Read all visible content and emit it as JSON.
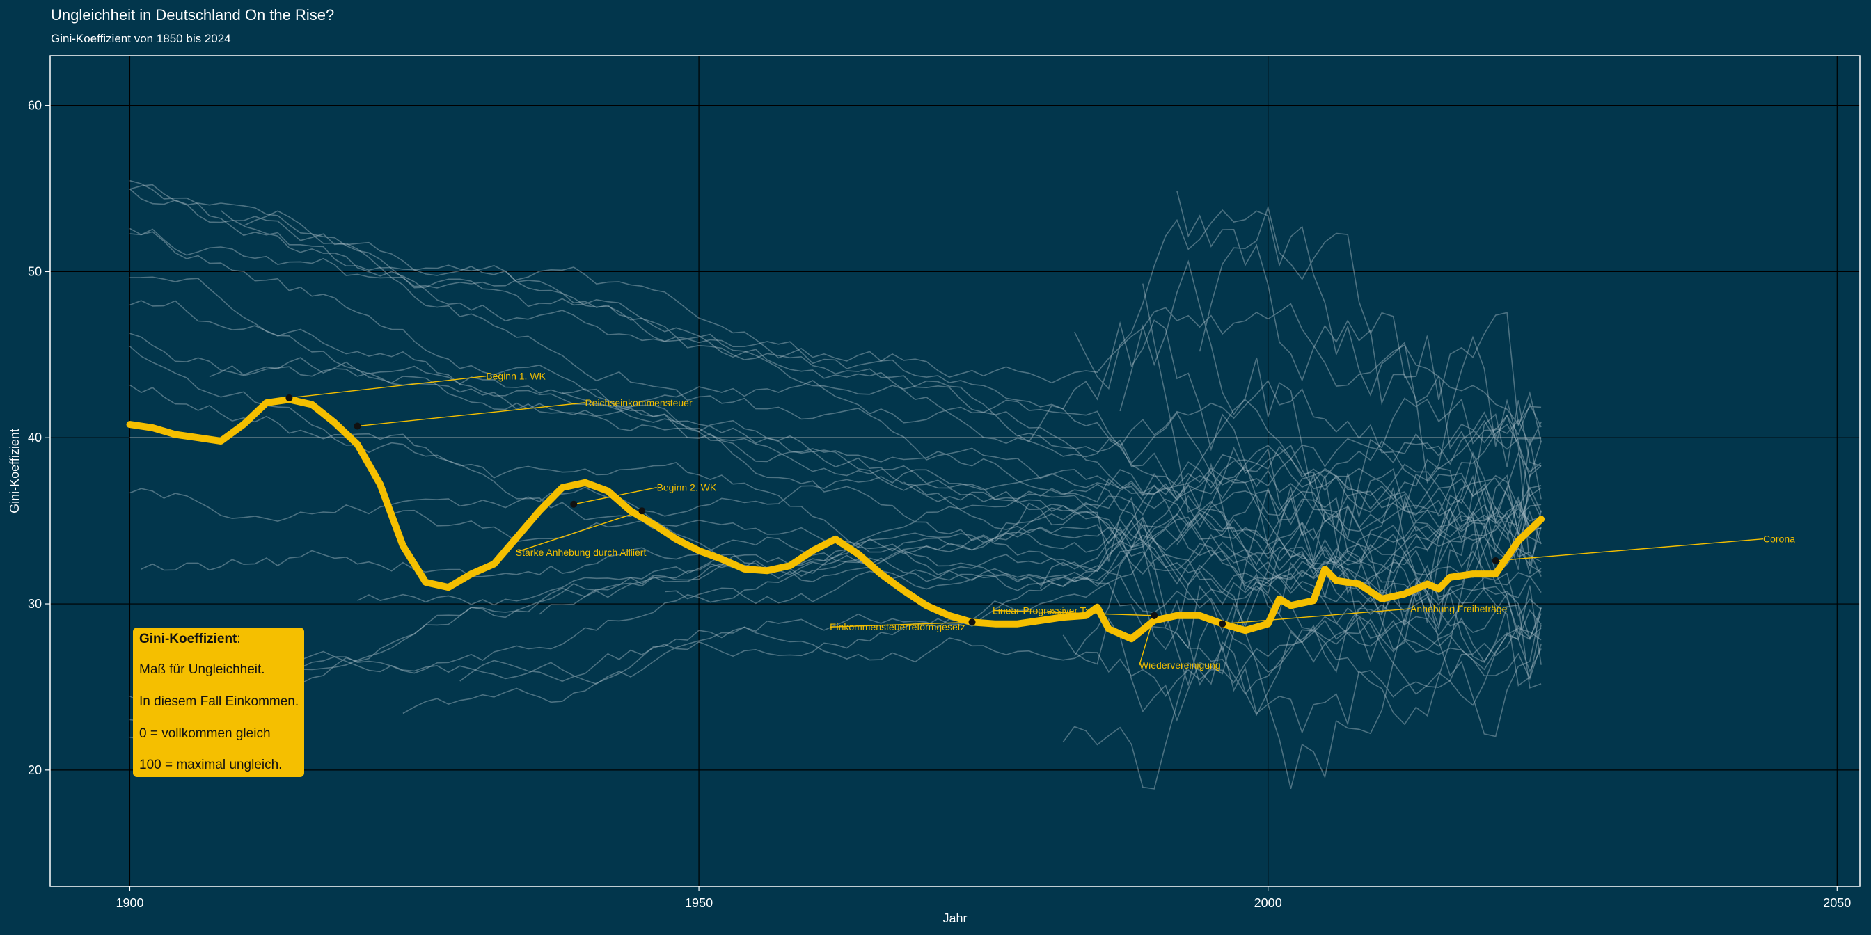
{
  "chart_data": {
    "type": "line",
    "title": "Ungleichheit in Deutschland On the Rise?",
    "subtitle": "Gini-Koeffizient von 1850 bis 2024",
    "xlabel": "Jahr",
    "ylabel": "Gini-Koeffizient",
    "xlim": [
      1893,
      2052
    ],
    "ylim": [
      13,
      63
    ],
    "x_ticks": [
      1900,
      1950,
      2000,
      2050
    ],
    "y_ticks": [
      20,
      30,
      40,
      50,
      60
    ],
    "grid": true,
    "colors": {
      "background": "#02364c",
      "highlight": "#f5bf00",
      "background_series": "#a9bcc6",
      "gridline": "#000000",
      "reference_line": "#c9d3d8"
    },
    "reference_line": {
      "y": 40,
      "x_range": [
        1900,
        2024
      ]
    },
    "highlight_series": {
      "x": [
        1900,
        1902,
        1904,
        1906,
        1908,
        1910,
        1912,
        1914,
        1916,
        1918,
        1920,
        1922,
        1924,
        1926,
        1928,
        1930,
        1932,
        1934,
        1936,
        1938,
        1940,
        1942,
        1944,
        1946,
        1948,
        1950,
        1952,
        1954,
        1956,
        1958,
        1960,
        1962,
        1964,
        1966,
        1968,
        1970,
        1972,
        1974,
        1976,
        1978,
        1980,
        1982,
        1984,
        1985,
        1986,
        1988,
        1990,
        1992,
        1994,
        1996,
        1998,
        2000,
        2001,
        2002,
        2004,
        2005,
        2006,
        2008,
        2010,
        2012,
        2014,
        2015,
        2016,
        2018,
        2020,
        2022,
        2024
      ],
      "y": [
        40.8,
        40.6,
        40.2,
        40.0,
        39.8,
        40.8,
        42.1,
        42.3,
        42.0,
        40.9,
        39.6,
        37.2,
        33.5,
        31.3,
        31.0,
        31.8,
        32.4,
        34.0,
        35.6,
        37.0,
        37.3,
        36.8,
        35.6,
        34.8,
        33.9,
        33.2,
        32.7,
        32.1,
        32.0,
        32.3,
        33.2,
        33.9,
        33.0,
        31.8,
        30.8,
        29.9,
        29.3,
        28.9,
        28.8,
        28.8,
        29.0,
        29.2,
        29.3,
        29.8,
        28.5,
        27.9,
        29.0,
        29.3,
        29.3,
        28.8,
        28.4,
        28.8,
        30.3,
        29.9,
        30.2,
        32.1,
        31.4,
        31.2,
        30.3,
        30.6,
        31.2,
        30.9,
        31.6,
        31.8,
        31.8,
        33.8,
        35.1
      ]
    },
    "annotations": [
      {
        "label": "Beginn 1. WK",
        "x": 1914,
        "y": 42.4,
        "label_x": 1931.3,
        "label_y": 43.5
      },
      {
        "label": "Reichseinkommensteuer",
        "x": 1920,
        "y": 40.7,
        "label_x": 1940.0,
        "label_y": 41.9
      },
      {
        "label": "Beginn 2. WK",
        "x": 1939,
        "y": 36.0,
        "label_x": 1946.3,
        "label_y": 36.8
      },
      {
        "label": "Starke Anhebung durch Alliiert",
        "x": 1945,
        "y": 35.6,
        "label_x": 1933.9,
        "label_y": 32.9
      },
      {
        "label": "Einkommensteuerreformgesetz",
        "x": 1974,
        "y": 28.9,
        "label_x": 1961.5,
        "label_y": 28.4
      },
      {
        "label": "Linear-Progressiver Tarif",
        "x": 1990,
        "y": 29.3,
        "label_x": 1975.8,
        "label_y": 29.4
      },
      {
        "label": "Wiedervereinigung",
        "x": 1990,
        "y": 29.3,
        "label_x": 1988.7,
        "label_y": 26.1
      },
      {
        "label": "Anhebung Freibeträge",
        "x": 1996,
        "y": 28.8,
        "label_x": 2012.5,
        "label_y": 29.5
      },
      {
        "label": "Corona",
        "x": 2020,
        "y": 32.6,
        "label_x": 2043.5,
        "label_y": 33.7
      }
    ],
    "background_series_count": 40
  },
  "info_box": {
    "heading": "Gini-Koeffizient",
    "colon": ":",
    "lines": [
      "Maß für Ungleichheit.",
      "In diesem Fall Einkommen.",
      "0 = vollkommen gleich",
      "100 = maximal ungleich."
    ]
  }
}
